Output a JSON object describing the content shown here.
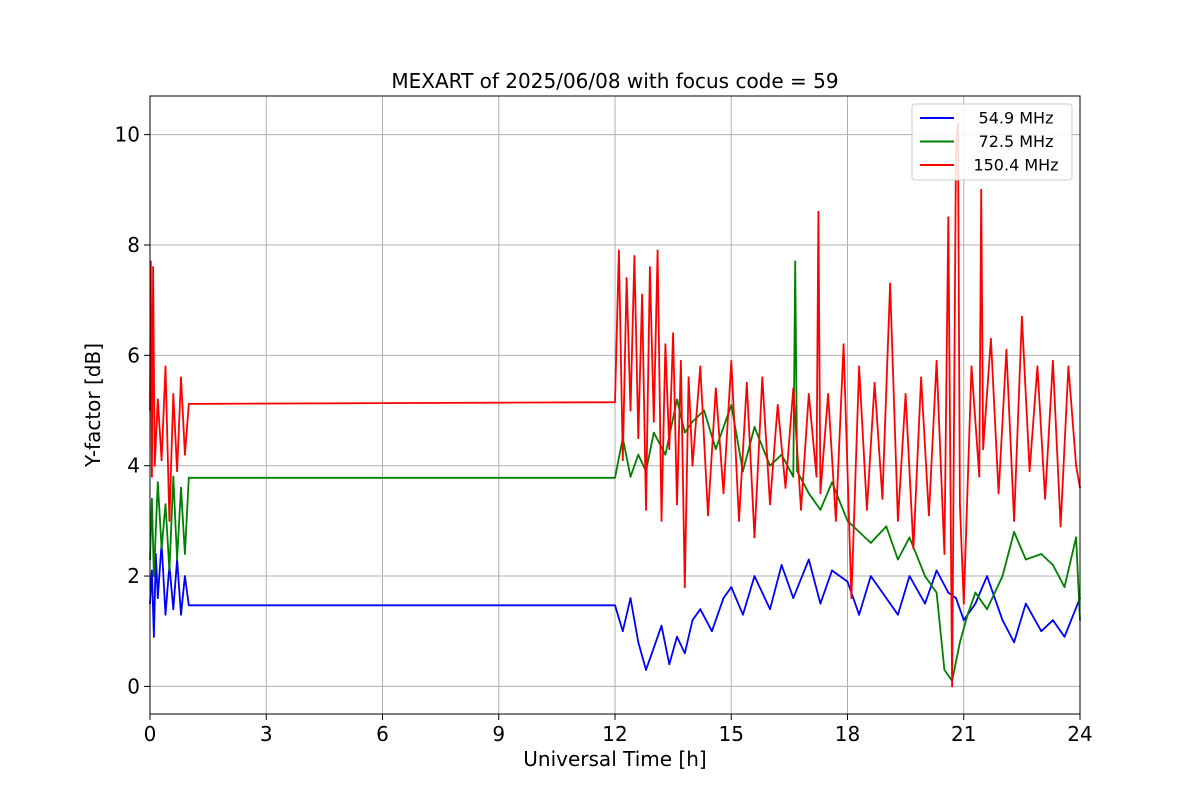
{
  "chart_data": {
    "type": "line",
    "title": "MEXART of 2025/06/08 with focus code = 59",
    "xlabel": "Universal Time [h]",
    "ylabel": "Y-factor [dB]",
    "xlim": [
      0,
      24
    ],
    "ylim": [
      -0.5,
      10.7
    ],
    "xticks": [
      0,
      3,
      6,
      9,
      12,
      15,
      18,
      21,
      24
    ],
    "yticks": [
      0,
      2,
      4,
      6,
      8,
      10
    ],
    "grid": true,
    "legend_position": "top-right",
    "series": [
      {
        "name": "54.9 MHz",
        "color": "#0000ff",
        "x": [
          0,
          0.05,
          0.1,
          0.15,
          0.2,
          0.3,
          0.4,
          0.5,
          0.6,
          0.7,
          0.8,
          0.9,
          1.0,
          12.0,
          12.2,
          12.4,
          12.6,
          12.8,
          13.0,
          13.2,
          13.4,
          13.6,
          13.8,
          14.0,
          14.2,
          14.5,
          14.8,
          15.0,
          15.3,
          15.6,
          16.0,
          16.3,
          16.6,
          17.0,
          17.3,
          17.6,
          18.0,
          18.3,
          18.6,
          19.0,
          19.3,
          19.6,
          20.0,
          20.3,
          20.6,
          20.8,
          21.0,
          21.3,
          21.6,
          22.0,
          22.3,
          22.6,
          23.0,
          23.3,
          23.6,
          24.0
        ],
        "y": [
          1.5,
          2.1,
          0.9,
          2.4,
          1.6,
          2.6,
          1.3,
          2.2,
          1.4,
          2.3,
          1.3,
          2.0,
          1.47,
          1.47,
          1.0,
          1.6,
          0.8,
          0.3,
          0.7,
          1.1,
          0.4,
          0.9,
          0.6,
          1.2,
          1.4,
          1.0,
          1.6,
          1.8,
          1.3,
          2.0,
          1.4,
          2.2,
          1.6,
          2.3,
          1.5,
          2.1,
          1.9,
          1.3,
          2.0,
          1.6,
          1.3,
          2.0,
          1.5,
          2.1,
          1.7,
          1.6,
          1.2,
          1.5,
          2.0,
          1.2,
          0.8,
          1.5,
          1.0,
          1.2,
          0.9,
          1.6
        ]
      },
      {
        "name": "72.5 MHz",
        "color": "#008000",
        "x": [
          0,
          0.05,
          0.1,
          0.2,
          0.3,
          0.4,
          0.5,
          0.6,
          0.7,
          0.8,
          0.9,
          1.0,
          12.0,
          12.2,
          12.4,
          12.6,
          12.8,
          13.0,
          13.3,
          13.6,
          13.8,
          14.0,
          14.3,
          14.6,
          15.0,
          15.3,
          15.6,
          16.0,
          16.3,
          16.6,
          16.65,
          16.7,
          17.0,
          17.3,
          17.6,
          18.0,
          18.3,
          18.6,
          19.0,
          19.3,
          19.6,
          20.0,
          20.3,
          20.5,
          20.7,
          20.9,
          21.1,
          21.3,
          21.6,
          22.0,
          22.3,
          22.6,
          23.0,
          23.3,
          23.6,
          23.9,
          24.0
        ],
        "y": [
          2.3,
          3.4,
          2.0,
          3.7,
          2.5,
          3.3,
          2.1,
          3.8,
          2.3,
          3.6,
          2.4,
          3.78,
          3.78,
          4.5,
          3.8,
          4.2,
          3.9,
          4.6,
          4.2,
          5.2,
          4.6,
          4.8,
          5.0,
          4.3,
          5.1,
          3.9,
          4.7,
          4.0,
          4.2,
          3.8,
          7.7,
          3.9,
          3.5,
          3.2,
          3.7,
          3.0,
          2.8,
          2.6,
          2.9,
          2.3,
          2.7,
          2.0,
          1.7,
          0.3,
          0.1,
          0.8,
          1.3,
          1.7,
          1.4,
          2.0,
          2.8,
          2.3,
          2.4,
          2.2,
          1.8,
          2.7,
          1.2
        ]
      },
      {
        "name": "150.4 MHz",
        "color": "#ff0000",
        "x": [
          0,
          0.02,
          0.05,
          0.08,
          0.12,
          0.2,
          0.3,
          0.4,
          0.5,
          0.6,
          0.7,
          0.8,
          0.9,
          1.0,
          12.0,
          12.1,
          12.2,
          12.3,
          12.4,
          12.5,
          12.6,
          12.7,
          12.8,
          12.9,
          13.0,
          13.1,
          13.2,
          13.3,
          13.4,
          13.5,
          13.6,
          13.7,
          13.8,
          13.9,
          14.0,
          14.2,
          14.4,
          14.6,
          14.8,
          15.0,
          15.2,
          15.4,
          15.6,
          15.8,
          16.0,
          16.2,
          16.4,
          16.6,
          16.8,
          17.0,
          17.2,
          17.25,
          17.3,
          17.5,
          17.7,
          17.9,
          18.1,
          18.3,
          18.5,
          18.7,
          18.9,
          19.1,
          19.3,
          19.5,
          19.7,
          19.9,
          20.1,
          20.3,
          20.5,
          20.6,
          20.7,
          20.8,
          20.85,
          20.9,
          21.0,
          21.2,
          21.4,
          21.45,
          21.5,
          21.7,
          21.9,
          22.1,
          22.3,
          22.5,
          22.7,
          22.9,
          23.1,
          23.3,
          23.5,
          23.7,
          23.9,
          24.0
        ],
        "y": [
          5.0,
          7.7,
          3.8,
          7.6,
          4.0,
          5.2,
          4.1,
          5.8,
          3.0,
          5.3,
          3.9,
          5.6,
          4.2,
          5.12,
          5.15,
          7.9,
          4.1,
          7.4,
          5.0,
          7.8,
          4.5,
          7.1,
          3.2,
          7.6,
          4.8,
          7.9,
          3.0,
          6.2,
          4.3,
          6.4,
          3.3,
          5.9,
          1.8,
          5.6,
          4.0,
          5.8,
          3.1,
          5.4,
          3.5,
          5.9,
          3.0,
          5.5,
          2.7,
          5.6,
          3.3,
          5.1,
          3.6,
          5.4,
          3.2,
          5.3,
          3.8,
          8.6,
          3.5,
          5.3,
          3.0,
          6.2,
          1.6,
          5.8,
          3.2,
          5.5,
          3.4,
          7.3,
          3.0,
          5.3,
          2.5,
          5.6,
          3.1,
          5.9,
          2.4,
          8.5,
          0.0,
          9.8,
          10.2,
          3.3,
          1.5,
          5.8,
          3.8,
          9.0,
          4.3,
          6.3,
          3.5,
          6.1,
          3.0,
          6.7,
          3.9,
          5.8,
          3.4,
          5.9,
          2.9,
          5.8,
          4.0,
          3.6
        ]
      }
    ]
  }
}
